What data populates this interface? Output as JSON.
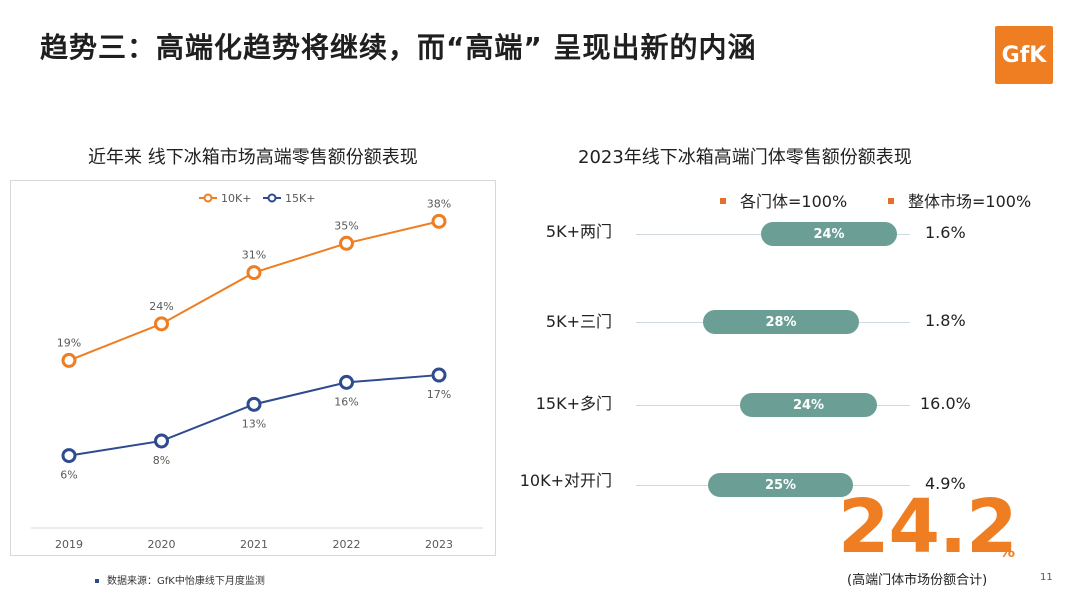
{
  "title": "趋势三：高端化趋势将继续，而“高端” 呈现出新的内涵",
  "logo_text": "GfK",
  "source": "数据来源：GfK中怡康线下月度监测",
  "page_number": "11",
  "colors": {
    "orange": "#ef7d22",
    "blue": "#2f4b8f",
    "teal": "#6b9e95"
  },
  "chart_data": [
    {
      "type": "line",
      "title": "近年来 线下冰箱市场高端零售额份额表现",
      "x": [
        "2019",
        "2020",
        "2021",
        "2022",
        "2023"
      ],
      "series": [
        {
          "name": "10K+",
          "values": [
            19,
            24,
            31,
            35,
            38
          ],
          "labels": [
            "19%",
            "24%",
            "31%",
            "35%",
            "38%"
          ],
          "color": "#ef7d22"
        },
        {
          "name": "15K+",
          "values": [
            6,
            8,
            13,
            16,
            17
          ],
          "labels": [
            "6%",
            "8%",
            "13%",
            "16%",
            "17%"
          ],
          "color": "#2f4b8f"
        }
      ],
      "ylim": [
        0,
        40
      ],
      "grid": false,
      "legend": "top-center"
    },
    {
      "type": "bar",
      "title": "2023年线下冰箱高端门体零售额份额表现",
      "legend": [
        "各门体=100%",
        "整体市场=100%"
      ],
      "categories": [
        "5K+两门",
        "5K+三门",
        "15K+多门",
        "10K+对开门"
      ],
      "series": [
        {
          "name": "各门体=100%",
          "values": [
            24,
            28,
            24,
            25
          ],
          "labels": [
            "24%",
            "28%",
            "24%",
            "25%"
          ]
        },
        {
          "name": "整体市场=100%",
          "values": [
            1.6,
            1.8,
            16.0,
            4.9
          ],
          "labels": [
            "1.6%",
            "1.8%",
            "16.0%",
            "4.9%"
          ]
        }
      ]
    }
  ],
  "summary": {
    "value": "24.2",
    "unit": "%",
    "caption": "(高端门体市场份额合计)"
  }
}
